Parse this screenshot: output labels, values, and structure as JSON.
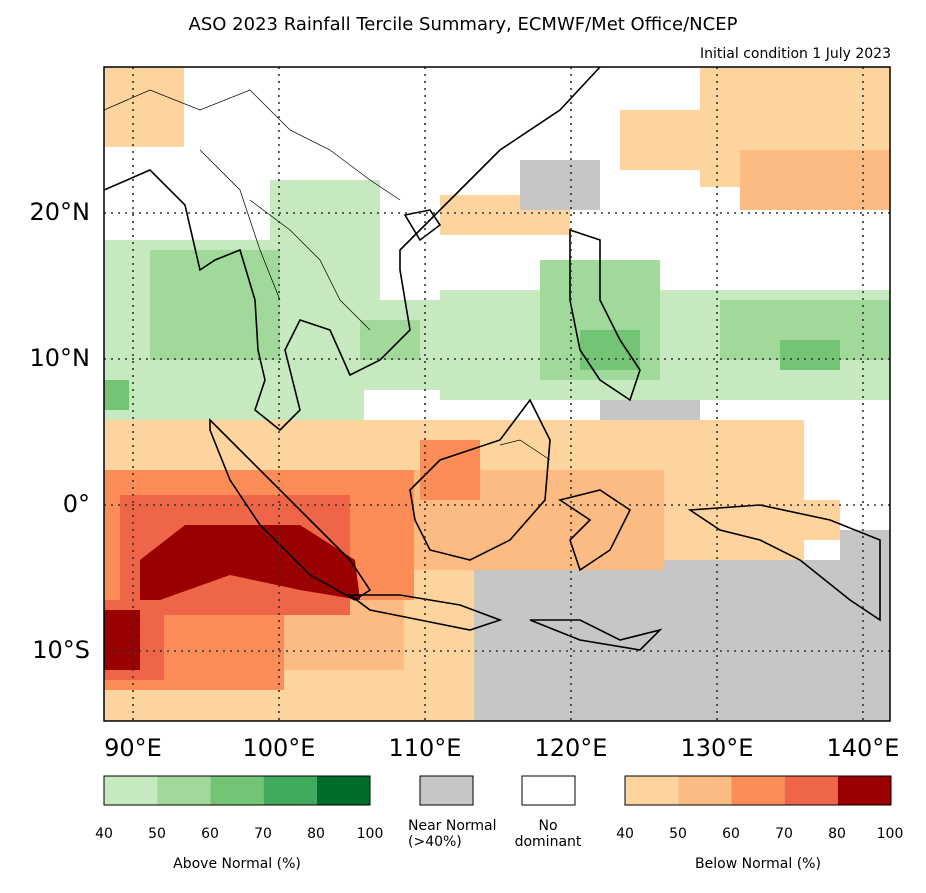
{
  "title": "ASO 2023 Rainfall Tercile Summary, ECMWF/Met Office/NCEP",
  "subtitle": "Initial condition 1 July 2023",
  "lon_labels": [
    "90°E",
    "100°E",
    "110°E",
    "120°E",
    "130°E",
    "140°E"
  ],
  "lat_labels": [
    "20°N",
    "10°N",
    "0°",
    "10°S"
  ],
  "map": {
    "lon_range": [
      88,
      142
    ],
    "lat_range": [
      -15,
      30
    ],
    "grid_lons": [
      90,
      100,
      110,
      120,
      130,
      140
    ],
    "grid_lats": [
      20,
      10,
      0,
      -10
    ]
  },
  "legend": {
    "above": {
      "caption": "Above Normal (%)",
      "ticks": [
        "40",
        "50",
        "60",
        "70",
        "80",
        "100"
      ],
      "colors": [
        "#c7e9c0",
        "#a1d99b",
        "#74c476",
        "#41ab5d",
        "#006d2c"
      ]
    },
    "near": {
      "caption_line1": "Near Normal",
      "caption_line2": "(>40%)",
      "color": "#c6c6c6"
    },
    "none": {
      "caption_line1": "No",
      "caption_line2": "dominant",
      "color": "#ffffff"
    },
    "below": {
      "caption": "Below Normal (%)",
      "ticks": [
        "40",
        "50",
        "60",
        "70",
        "80",
        "100"
      ],
      "colors": [
        "#fdd49e",
        "#fdbb84",
        "#fc8d59",
        "#ef6548",
        "#990000"
      ]
    }
  }
}
